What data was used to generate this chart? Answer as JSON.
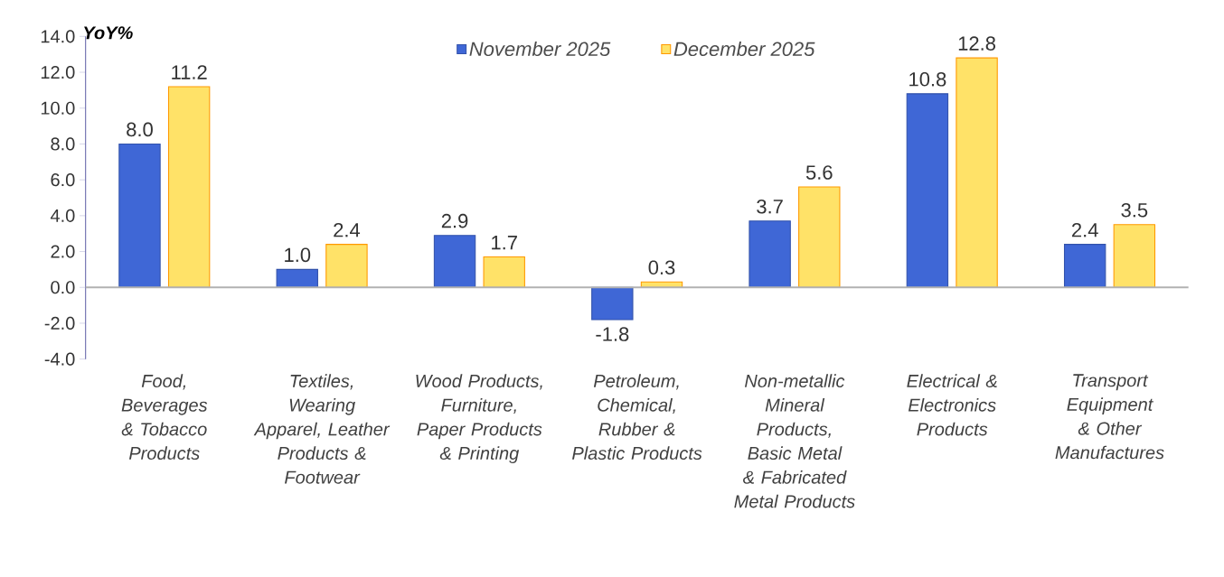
{
  "chart_data": {
    "type": "bar",
    "ylabel": "YoY%",
    "categories": [
      "Food, Beverages & Tobacco Products",
      "Textiles, Wearing Apparel, Leather Products & Footwear",
      "Wood Products, Furniture, Paper Products & Printing",
      "Petroleum, Chemical, Rubber & Plastic Products",
      "Non-metallic Mineral Products, Basic Metal & Fabricated Metal Products",
      "Electrical & Electronics Products",
      "Transport Equipment & Other Manufactures"
    ],
    "series": [
      {
        "name": "November 2025",
        "color": "#3f67d6",
        "values": [
          8.0,
          1.0,
          2.9,
          -1.8,
          3.7,
          10.8,
          2.4
        ],
        "value_labels": [
          "8.0",
          "1.0",
          "2.9",
          "-1.8",
          "3.7",
          "10.8",
          "2.4"
        ]
      },
      {
        "name": "December 2025",
        "color": "#ffe268",
        "values": [
          11.2,
          2.4,
          1.7,
          0.3,
          5.6,
          12.8,
          3.5
        ],
        "value_labels": [
          "11.2",
          "2.4",
          "1.7",
          "0.3",
          "5.6",
          "12.8",
          "3.5"
        ]
      }
    ],
    "ylim": [
      -4,
      14
    ],
    "yticks": [
      {
        "value": -4,
        "label": "-4.0"
      },
      {
        "value": -2,
        "label": "-2.0"
      },
      {
        "value": 0,
        "label": "0.0"
      },
      {
        "value": 2,
        "label": "2.0"
      },
      {
        "value": 4,
        "label": "4.0"
      },
      {
        "value": 6,
        "label": "6.0"
      },
      {
        "value": 8,
        "label": "8.0"
      },
      {
        "value": 10,
        "label": "10.0"
      },
      {
        "value": 12,
        "label": "12.0"
      },
      {
        "value": 14,
        "label": "14.0"
      }
    ],
    "legend": "top"
  }
}
